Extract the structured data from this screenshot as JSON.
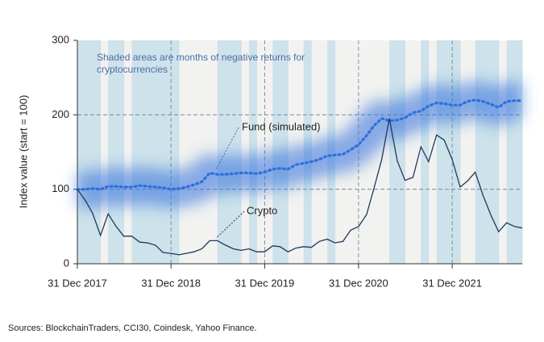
{
  "chart_data": {
    "type": "line",
    "y_label": "Index value (start = 100)",
    "annotation": "Shaded areas are months of negative returns for cryptocurrencies",
    "source": "Sources: BlockchainTraders, CCI30, Coindesk, Yahoo Finance.",
    "x": [
      "2017-12-31",
      "2018-01-31",
      "2018-02-28",
      "2018-03-31",
      "2018-04-30",
      "2018-05-31",
      "2018-06-30",
      "2018-07-31",
      "2018-08-31",
      "2018-09-30",
      "2018-10-31",
      "2018-11-30",
      "2018-12-31",
      "2019-01-31",
      "2019-02-28",
      "2019-03-31",
      "2019-04-30",
      "2019-05-31",
      "2019-06-30",
      "2019-07-31",
      "2019-08-31",
      "2019-09-30",
      "2019-10-31",
      "2019-11-30",
      "2019-12-31",
      "2020-01-31",
      "2020-02-29",
      "2020-03-31",
      "2020-04-30",
      "2020-05-31",
      "2020-06-30",
      "2020-07-31",
      "2020-08-31",
      "2020-09-30",
      "2020-10-31",
      "2020-11-30",
      "2020-12-31",
      "2021-01-31",
      "2021-02-28",
      "2021-03-31",
      "2021-04-30",
      "2021-05-31",
      "2021-06-30",
      "2021-07-31",
      "2021-08-31",
      "2021-09-30",
      "2021-10-31",
      "2021-11-30",
      "2021-12-31",
      "2022-01-31",
      "2022-02-28",
      "2022-03-31",
      "2022-04-30",
      "2022-05-31",
      "2022-06-30",
      "2022-07-31",
      "2022-08-31",
      "2022-09-30"
    ],
    "series": [
      {
        "name": "Fund (simulated)",
        "color": "#2f6fdc",
        "values": [
          100,
          100,
          101,
          100,
          104,
          104,
          103,
          103,
          105,
          104,
          103,
          102,
          100,
          101,
          103,
          106,
          110,
          122,
          120,
          120,
          121,
          122,
          122,
          121,
          123,
          127,
          128,
          127,
          133,
          135,
          137,
          140,
          145,
          146,
          147,
          153,
          160,
          172,
          185,
          195,
          192,
          193,
          196,
          203,
          205,
          212,
          216,
          215,
          213,
          213,
          218,
          220,
          218,
          214,
          210,
          218,
          219,
          219
        ]
      },
      {
        "name": "Crypto",
        "color": "#1d3a5c",
        "values": [
          100,
          85,
          68,
          38,
          67,
          50,
          37,
          37,
          29,
          28,
          25,
          15,
          14,
          12,
          14,
          16,
          20,
          31,
          31,
          25,
          20,
          18,
          20,
          16,
          16,
          24,
          23,
          16,
          21,
          23,
          22,
          30,
          33,
          28,
          30,
          45,
          50,
          66,
          100,
          140,
          195,
          138,
          112,
          116,
          157,
          137,
          173,
          166,
          140,
          103,
          111,
          123,
          92,
          65,
          43,
          55,
          50,
          48
        ]
      }
    ],
    "shade_color": "#cde2ea",
    "xlim": [
      "2017-12-31",
      "2022-09-30"
    ],
    "xticks": [
      {
        "value": "2017-12-31",
        "label": "31 Dec 2017"
      },
      {
        "value": "2018-12-31",
        "label": "31 Dec 2018"
      },
      {
        "value": "2019-12-31",
        "label": "31 Dec 2019"
      },
      {
        "value": "2020-12-31",
        "label": "31 Dec 2020"
      },
      {
        "value": "2021-12-31",
        "label": "31 Dec 2021"
      }
    ],
    "ylim": [
      0,
      300
    ],
    "yticks": [
      0,
      100,
      200,
      300
    ],
    "grid": true
  }
}
